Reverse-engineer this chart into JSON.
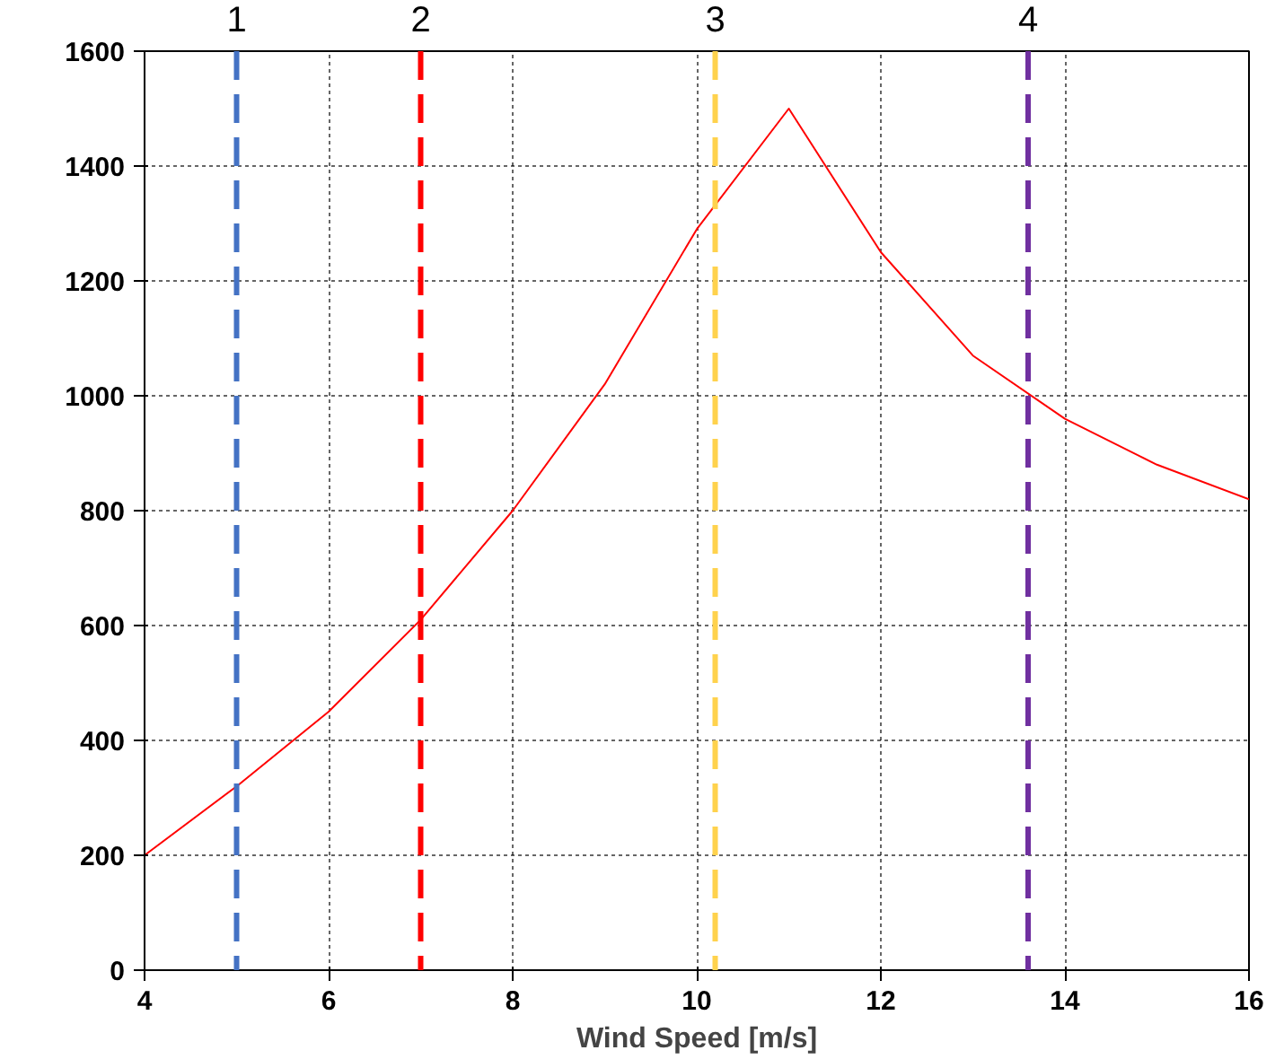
{
  "chart_data": {
    "type": "line",
    "xlabel": "Wind Speed [m/s]",
    "x": [
      4,
      5,
      6,
      7,
      8,
      9,
      10,
      11,
      12,
      13,
      14,
      15,
      16
    ],
    "series": [
      {
        "color": "#ff0000",
        "values": [
          200,
          320,
          450,
          610,
          800,
          1020,
          1290,
          1500,
          1250,
          1070,
          960,
          880,
          820
        ]
      }
    ],
    "xlim": [
      4,
      16
    ],
    "ylim": [
      0,
      1600
    ],
    "xticks": [
      4,
      6,
      8,
      10,
      12,
      14,
      16
    ],
    "yticks": [
      0,
      200,
      400,
      600,
      800,
      1000,
      1200,
      1400,
      1600
    ],
    "annotations": [
      {
        "text": "1",
        "x": 5.0,
        "y": 1600
      },
      {
        "text": "2",
        "x": 7.0,
        "y": 1600
      },
      {
        "text": "3",
        "x": 10.2,
        "y": 1600
      },
      {
        "text": "4",
        "x": 13.6,
        "y": 1600
      }
    ],
    "grid": true,
    "line_style": "solid",
    "ref_lines": [
      {
        "axis": "x",
        "value": 5.0,
        "color": "#4472c4",
        "line_style": "dashed"
      },
      {
        "axis": "x",
        "value": 7.0,
        "color": "#ff0000",
        "line_style": "dashed"
      },
      {
        "axis": "x",
        "value": 10.2,
        "color": "#ffd24d",
        "line_style": "dashed"
      },
      {
        "axis": "x",
        "value": 13.6,
        "color": "#7030a0",
        "line_style": "dashed"
      }
    ]
  }
}
